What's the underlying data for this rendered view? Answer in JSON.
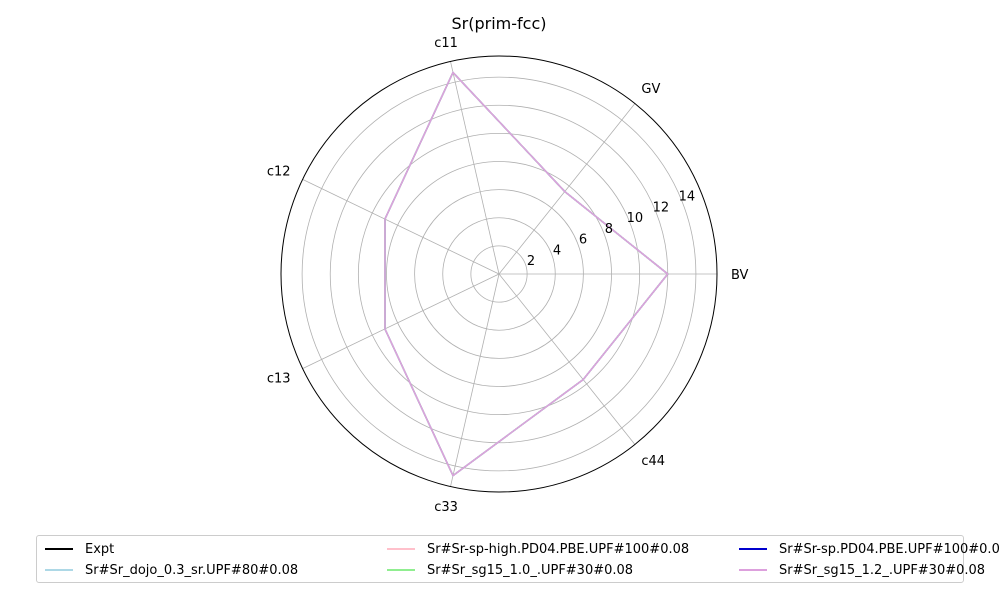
{
  "chart_data": {
    "type": "radar",
    "title": "Sr(prim-fcc)",
    "axes": [
      "BV",
      "GV",
      "c11",
      "c12",
      "c13",
      "c33",
      "c44"
    ],
    "radial_ticks": [
      2,
      4,
      6,
      8,
      10,
      12,
      14
    ],
    "rlim": [
      0,
      15.5
    ],
    "grid": true,
    "legend_position": "bottom",
    "series": [
      {
        "name": "Expt",
        "color": "#000000",
        "values": []
      },
      {
        "name": "Sr#Sr-sp-high.PD04.PBE.UPF#100#0.08",
        "color": "#ffc0cb",
        "values": [
          12.0,
          7.5,
          14.7,
          9.0,
          9.0,
          14.7,
          9.6
        ]
      },
      {
        "name": "Sr#Sr-sp.PD04.PBE.UPF#100#0.08",
        "color": "#0000cd",
        "values": [
          12.0,
          7.5,
          14.7,
          9.0,
          9.0,
          14.7,
          9.6
        ]
      },
      {
        "name": "Sr#Sr_dojo_0.3_sr.UPF#80#0.08",
        "color": "#add8e6",
        "values": [
          12.0,
          7.5,
          14.7,
          9.0,
          9.0,
          14.7,
          9.6
        ]
      },
      {
        "name": "Sr#Sr_sg15_1.0_.UPF#30#0.08",
        "color": "#90ee90",
        "values": [
          12.0,
          7.5,
          14.7,
          9.0,
          9.0,
          14.7,
          9.6
        ]
      },
      {
        "name": "Sr#Sr_sg15_1.2_.UPF#30#0.08",
        "color": "#dda0dd",
        "values": [
          12.0,
          7.5,
          14.7,
          9.0,
          9.0,
          14.7,
          9.6
        ]
      }
    ]
  }
}
